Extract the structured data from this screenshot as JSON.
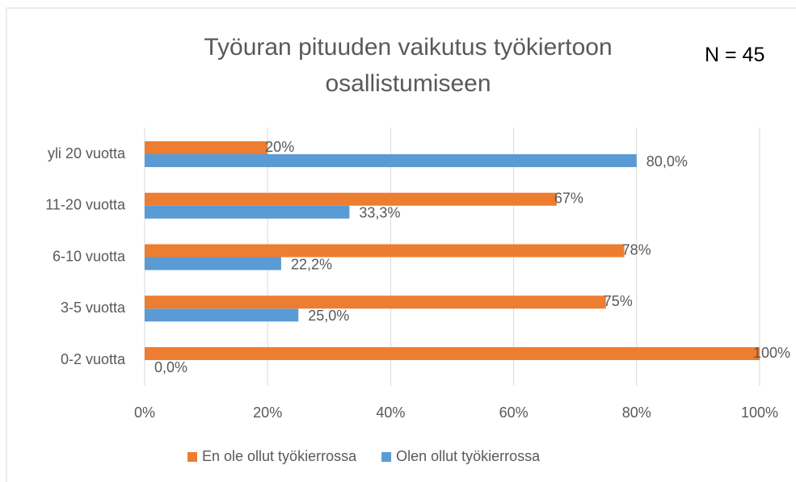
{
  "chart_data": {
    "type": "hbar",
    "title": "Työuran pituuden vaikutus työkiertoon osallistumiseen",
    "annotation": "N = 45",
    "categories": [
      "yli 20 vuotta",
      "11-20 vuotta",
      "6-10 vuotta",
      "3-5 vuotta",
      "0-2 vuotta"
    ],
    "series": [
      {
        "name": "En ole ollut työkierrossa",
        "color": "#ed7d31",
        "values": [
          20,
          67,
          78,
          75,
          100
        ],
        "value_labels": [
          "20%",
          "67%",
          "78%",
          "75%",
          "100%"
        ]
      },
      {
        "name": "Olen ollut työkierrossa",
        "color": "#5b9bd5",
        "values": [
          80,
          33.3,
          22.2,
          25,
          0
        ],
        "value_labels": [
          "80,0%",
          "33,3%",
          "22,2%",
          "25,0%",
          "0,0%"
        ]
      }
    ],
    "xlim": [
      0,
      100
    ],
    "xticks": [
      {
        "value": 0,
        "label": "0%"
      },
      {
        "value": 20,
        "label": "20%"
      },
      {
        "value": 40,
        "label": "40%"
      },
      {
        "value": 60,
        "label": "60%"
      },
      {
        "value": 80,
        "label": "80%"
      },
      {
        "value": 100,
        "label": "100%"
      }
    ],
    "grid": true
  }
}
